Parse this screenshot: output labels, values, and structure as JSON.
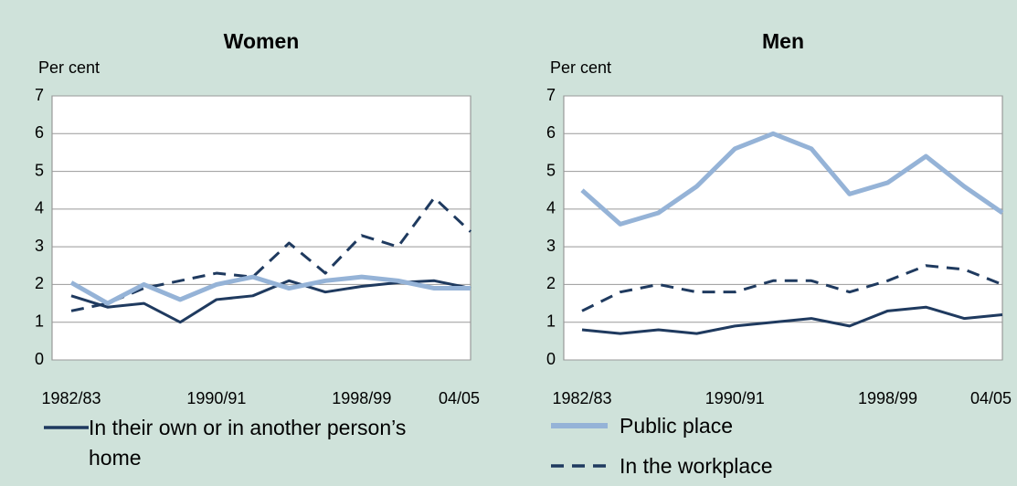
{
  "chart_data": [
    {
      "type": "line",
      "title": "Women",
      "y_label": "Per cent",
      "categories": [
        "1982/83",
        null,
        null,
        null,
        "1990/91",
        null,
        null,
        null,
        "1998/99",
        null,
        null,
        "04/05"
      ],
      "ylim": [
        0,
        7
      ],
      "yticks": [
        0,
        1,
        2,
        3,
        4,
        5,
        6,
        7
      ],
      "grid": true,
      "series": [
        {
          "name": "In their own or in another person’s home",
          "color": "#1f3a5f",
          "dash": "solid",
          "values": [
            1.7,
            1.4,
            1.5,
            1.0,
            1.6,
            1.7,
            2.1,
            1.8,
            1.95,
            2.05,
            2.1,
            1.9
          ]
        },
        {
          "name": "Public place",
          "color": "#95b3d7",
          "dash": "solid",
          "values": [
            2.05,
            1.5,
            2.0,
            1.6,
            2.0,
            2.2,
            1.9,
            2.1,
            2.2,
            2.1,
            1.9,
            1.9
          ]
        },
        {
          "name": "In the workplace",
          "color": "#1f3a5f",
          "dash": "dashed",
          "values": [
            1.3,
            1.5,
            1.9,
            2.1,
            2.3,
            2.2,
            3.1,
            2.3,
            3.3,
            3.0,
            4.3,
            3.4
          ]
        }
      ]
    },
    {
      "type": "line",
      "title": "Men",
      "y_label": "Per cent",
      "categories": [
        "1982/83",
        null,
        null,
        null,
        "1990/91",
        null,
        null,
        null,
        "1998/99",
        null,
        null,
        "04/05"
      ],
      "ylim": [
        0,
        7
      ],
      "yticks": [
        0,
        1,
        2,
        3,
        4,
        5,
        6,
        7
      ],
      "grid": true,
      "series": [
        {
          "name": "In their own or in another person’s home",
          "color": "#1f3a5f",
          "dash": "solid",
          "values": [
            0.8,
            0.7,
            0.8,
            0.7,
            0.9,
            1.0,
            1.1,
            0.9,
            1.3,
            1.4,
            1.1,
            1.2
          ]
        },
        {
          "name": "Public place",
          "color": "#95b3d7",
          "dash": "solid",
          "values": [
            4.5,
            3.6,
            3.9,
            4.6,
            5.6,
            6.0,
            5.6,
            4.4,
            4.7,
            5.4,
            4.6,
            3.9
          ]
        },
        {
          "name": "In the workplace",
          "color": "#1f3a5f",
          "dash": "dashed",
          "values": [
            1.3,
            1.8,
            2.0,
            1.8,
            1.8,
            2.1,
            2.1,
            1.8,
            2.1,
            2.5,
            2.4,
            2.0
          ]
        }
      ]
    }
  ]
}
